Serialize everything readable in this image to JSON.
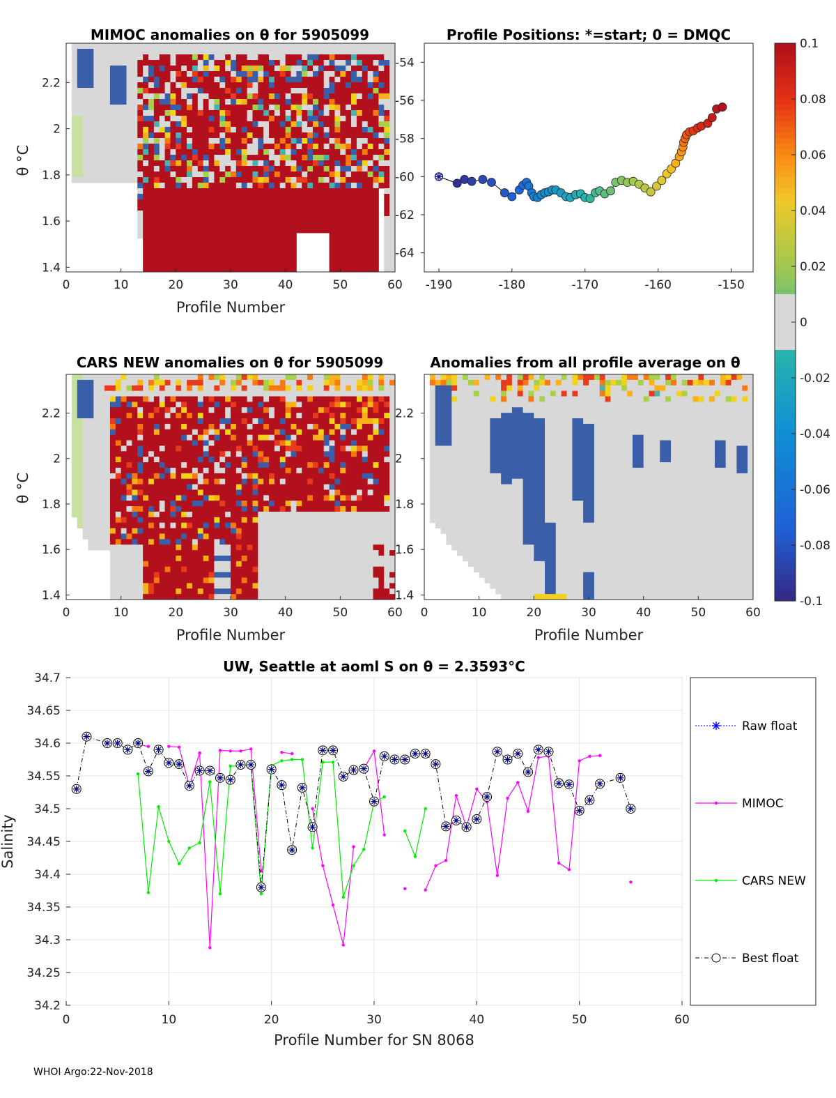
{
  "footer": "WHOI Argo:22-Nov-2018",
  "colorbar": {
    "ticks": [
      "0.1",
      "0.08",
      "0.06",
      "0.04",
      "0.02",
      "0",
      "-0.02",
      "-0.04",
      "-0.06",
      "-0.08",
      "-0.1"
    ],
    "range": [
      -0.1,
      0.1
    ]
  },
  "colors": {
    "red": "#b2101c",
    "grey": "#d8d8d8",
    "blue": "#3a5ea8",
    "pink": "#ff00ff",
    "green": "#00ee00",
    "navy": "#000080"
  },
  "chart_data": [
    {
      "id": "mimoc",
      "type": "heatmap",
      "title": "MIMOC anomalies on θ  for 5905099",
      "xlabel": "Profile Number",
      "ylabel": "θ °C",
      "xlim": [
        0,
        60
      ],
      "ylim": [
        1.38,
        2.37
      ],
      "xticks": [
        "0",
        "10",
        "20",
        "30",
        "40",
        "50",
        "60"
      ],
      "yticks": [
        "1.4",
        "1.6",
        "1.8",
        "2",
        "2.2"
      ]
    },
    {
      "id": "positions",
      "type": "scatter",
      "title": "Profile Positions: *=start; 0 = DMQC",
      "xlim": [
        -192,
        -147
      ],
      "ylim": [
        -65,
        -53
      ],
      "xticks": [
        "-190",
        "-180",
        "-170",
        "-160",
        "-150"
      ],
      "yticks": [
        "-54",
        "-56",
        "-58",
        "-60",
        "-62",
        "-64"
      ],
      "lon": [
        -190,
        -187.5,
        -186.5,
        -185.5,
        -184,
        -182.8,
        -181,
        -180,
        -179,
        -178.5,
        -178,
        -177.7,
        -177.3,
        -177,
        -176.5,
        -176,
        -175.5,
        -175,
        -174.5,
        -174,
        -173.3,
        -172.6,
        -172,
        -171.3,
        -170.6,
        -170,
        -169.3,
        -168.6,
        -168,
        -167.3,
        -166.5,
        -165.8,
        -165,
        -164.2,
        -163.4,
        -162.6,
        -161.8,
        -161,
        -160.2,
        -159.5,
        -158.8,
        -158.2,
        -157.6,
        -157.1,
        -156.8,
        -156.6,
        -156.5,
        -156.3,
        -156.1,
        -155.7,
        -155.2,
        -154.6,
        -154.1,
        -153.2,
        -152.6,
        -152,
        -151.2
      ],
      "lat": [
        -60,
        -60.35,
        -60.15,
        -60.25,
        -60.15,
        -60.3,
        -60.85,
        -61.05,
        -60.7,
        -60.45,
        -60.3,
        -60.5,
        -60.85,
        -61.05,
        -61.1,
        -60.95,
        -60.85,
        -60.8,
        -60.7,
        -60.7,
        -60.85,
        -61.05,
        -61.1,
        -60.95,
        -60.9,
        -61.1,
        -61.15,
        -60.85,
        -60.75,
        -60.9,
        -60.75,
        -60.3,
        -60.2,
        -60.3,
        -60.25,
        -60.4,
        -60.6,
        -60.8,
        -60.5,
        -60.2,
        -59.85,
        -59.6,
        -59.3,
        -58.95,
        -58.7,
        -58.45,
        -58.2,
        -58,
        -57.8,
        -57.65,
        -57.6,
        -57.45,
        -57.35,
        -57.2,
        -56.9,
        -56.45,
        -56.35
      ],
      "start": [
        -190,
        -60
      ]
    },
    {
      "id": "cars",
      "type": "heatmap",
      "title": "CARS NEW anomalies on θ for 5905099",
      "xlabel": "Profile Number",
      "ylabel": "θ °C",
      "xlim": [
        0,
        60
      ],
      "ylim": [
        1.38,
        2.37
      ],
      "xticks": [
        "0",
        "10",
        "20",
        "30",
        "40",
        "50",
        "60"
      ],
      "yticks": [
        "1.4",
        "1.6",
        "1.8",
        "2",
        "2.2"
      ]
    },
    {
      "id": "allavg",
      "type": "heatmap",
      "title": "Anomalies from all profile average on θ",
      "xlabel": "Profile Number",
      "xlim": [
        0,
        60
      ],
      "ylim": [
        1.38,
        2.37
      ],
      "xticks": [
        "0",
        "10",
        "20",
        "30",
        "40",
        "50",
        "60"
      ],
      "yticks": [
        "1.4",
        "1.6",
        "1.8",
        "2",
        "2.2"
      ]
    },
    {
      "id": "salinity",
      "type": "line",
      "title": "UW, Seattle at aoml S on θ = 2.3593°C",
      "xlabel": "Profile Number for SN 8068",
      "ylabel": "Salinity",
      "xlim": [
        0,
        60
      ],
      "ylim": [
        34.2,
        34.7
      ],
      "xticks": [
        "0",
        "10",
        "20",
        "30",
        "40",
        "50",
        "60"
      ],
      "yticks": [
        "34.2",
        "34.25",
        "34.3",
        "34.35",
        "34.4",
        "34.45",
        "34.5",
        "34.55",
        "34.6",
        "34.65",
        "34.7"
      ],
      "legend": [
        "Raw float",
        "MIMOC",
        "CARS NEW",
        "Best float"
      ],
      "best_float": {
        "x": [
          1,
          2,
          4,
          5,
          6,
          7,
          8,
          9,
          10,
          11,
          12,
          13,
          14,
          15,
          16,
          17,
          18,
          19,
          20,
          21,
          22,
          23,
          24,
          25,
          26,
          27,
          28,
          29,
          30,
          31,
          32,
          33,
          34,
          35,
          36,
          37,
          38,
          39,
          40,
          41,
          42,
          43,
          44,
          45,
          46,
          47,
          48,
          49,
          50,
          51,
          52,
          54,
          55
        ],
        "y": [
          34.53,
          34.61,
          34.6,
          34.6,
          34.59,
          34.6,
          34.557,
          34.59,
          34.57,
          34.568,
          34.535,
          34.558,
          34.558,
          34.547,
          34.544,
          34.567,
          34.567,
          34.38,
          34.56,
          34.536,
          34.437,
          34.532,
          34.472,
          34.589,
          34.589,
          34.549,
          34.559,
          34.561,
          34.511,
          34.58,
          34.575,
          34.575,
          34.584,
          34.584,
          34.568,
          34.473,
          34.482,
          34.472,
          34.484,
          34.518,
          34.587,
          34.575,
          34.584,
          34.556,
          34.59,
          34.587,
          34.539,
          34.537,
          34.497,
          34.513,
          34.538,
          34.547,
          34.5
        ]
      },
      "mimoc": {
        "segments": [
          {
            "x": [
              7,
              8
            ],
            "y": [
              34.598,
              34.595
            ]
          },
          {
            "x": [
              10,
              11,
              12,
              13,
              14,
              15,
              16,
              17,
              18,
              19
            ],
            "y": [
              34.595,
              34.594,
              34.535,
              34.585,
              34.288,
              34.589,
              34.588,
              34.588,
              34.591,
              34.405
            ]
          },
          {
            "x": [
              21,
              22
            ],
            "y": [
              34.586,
              34.584
            ]
          },
          {
            "x": [
              24,
              25,
              26,
              27,
              28
            ],
            "y": [
              34.5,
              34.413,
              34.353,
              34.292,
              34.442
            ]
          },
          {
            "x": [
              29,
              30,
              31
            ],
            "y": [
              34.561,
              34.588,
              34.46
            ]
          },
          {
            "x": [
              33
            ],
            "y": [
              34.378
            ]
          },
          {
            "x": [
              35,
              36,
              37,
              38,
              39,
              40,
              41,
              42,
              43,
              44,
              45,
              46,
              47,
              48,
              49,
              50,
              51,
              52
            ],
            "y": [
              34.376,
              34.413,
              34.421,
              34.52,
              34.472,
              34.53,
              34.51,
              34.398,
              34.516,
              34.54,
              34.496,
              34.578,
              34.58,
              34.417,
              34.407,
              34.573,
              34.58,
              34.581
            ]
          },
          {
            "x": [
              55
            ],
            "y": [
              34.388
            ]
          }
        ]
      },
      "cars_new": {
        "segments": [
          {
            "x": [
              7,
              8,
              9,
              10,
              11,
              12,
              13,
              14,
              15,
              16,
              17,
              18,
              19,
              20,
              21,
              22,
              23,
              24,
              25,
              26,
              27,
              28,
              29,
              30,
              31
            ],
            "y": [
              34.553,
              34.372,
              34.503,
              34.45,
              34.416,
              34.44,
              34.448,
              34.541,
              34.37,
              34.565,
              34.565,
              34.567,
              34.37,
              34.566,
              34.573,
              34.575,
              34.575,
              34.44,
              34.571,
              34.571,
              34.365,
              34.413,
              34.438,
              34.51,
              34.518
            ]
          },
          {
            "x": [
              33,
              34,
              35
            ],
            "y": [
              34.466,
              34.427,
              34.5
            ]
          }
        ]
      }
    }
  ]
}
